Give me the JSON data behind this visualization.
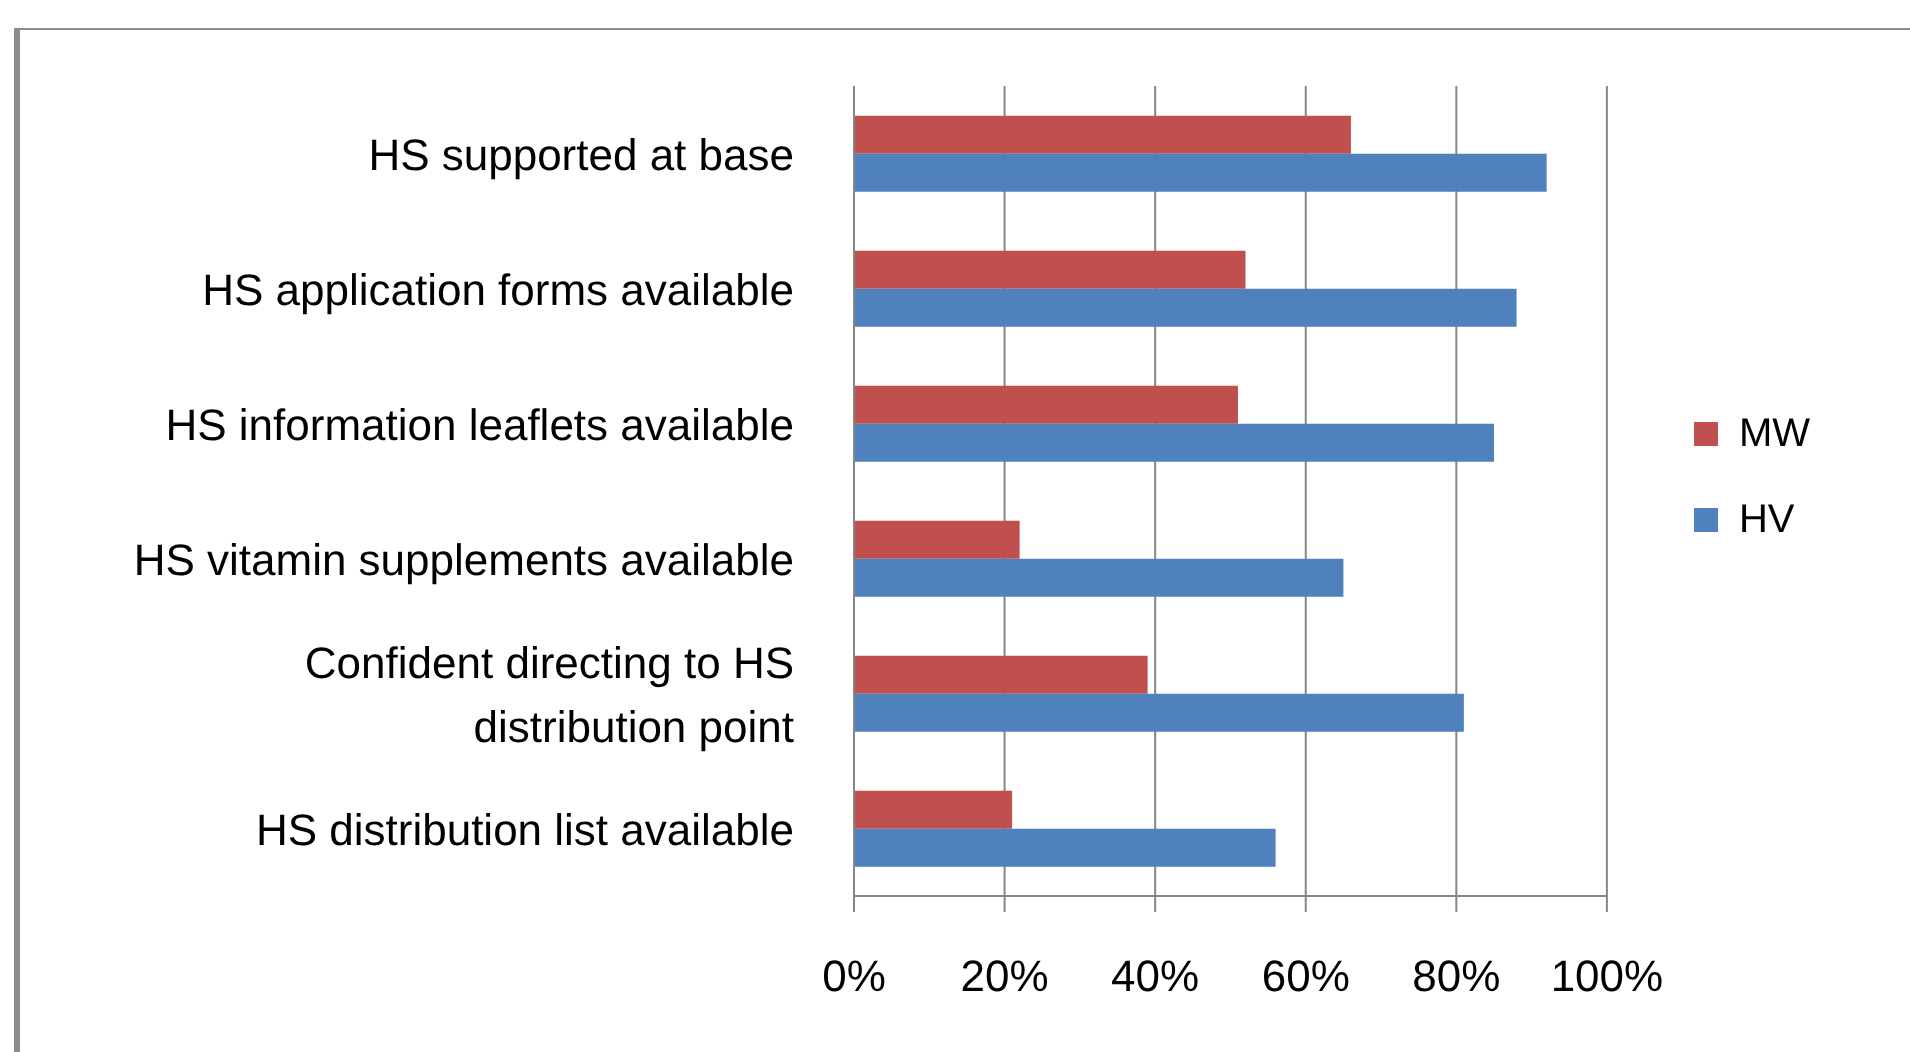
{
  "chart_data": {
    "type": "bar",
    "orientation": "horizontal",
    "categories": [
      "HS supported at base",
      "HS application forms available",
      "HS information leaflets available",
      "HS vitamin supplements available",
      "Confident directing to HS distribution point",
      "HS distribution list available"
    ],
    "series": [
      {
        "name": "MW",
        "color": "#c0504d",
        "values": [
          66,
          52,
          51,
          22,
          39,
          21
        ]
      },
      {
        "name": "HV",
        "color": "#4f81bd",
        "values": [
          92,
          88,
          85,
          65,
          81,
          56
        ]
      }
    ],
    "xlim": [
      0,
      100
    ],
    "xticks": [
      {
        "value": 0,
        "label": "0%"
      },
      {
        "value": 20,
        "label": "20%"
      },
      {
        "value": 40,
        "label": "40%"
      },
      {
        "value": 60,
        "label": "60%"
      },
      {
        "value": 80,
        "label": "80%"
      },
      {
        "value": 100,
        "label": "100%"
      }
    ],
    "grid": "x",
    "legend": "right"
  }
}
